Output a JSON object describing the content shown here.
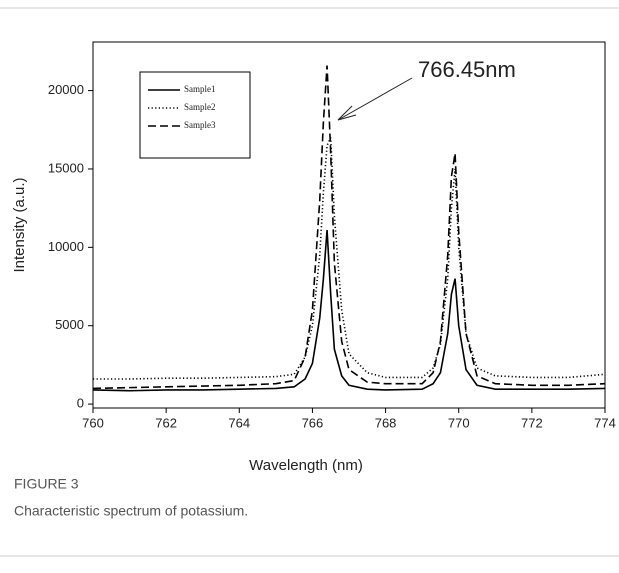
{
  "chart_data": {
    "type": "line",
    "x_label": "Wavelength (nm)",
    "y_label": "Intensity (a.u.)",
    "annotation": "766.45nm",
    "figure_label": "FIGURE 3",
    "caption": "Characteristic spectrum of potassium.",
    "x": [
      760,
      761,
      762,
      763,
      764,
      765,
      765.5,
      765.8,
      766.0,
      766.2,
      766.3,
      766.4,
      766.5,
      766.6,
      766.8,
      767.0,
      767.5,
      768,
      769,
      769.3,
      769.5,
      769.7,
      769.8,
      769.9,
      770.0,
      770.2,
      770.5,
      771,
      772,
      773,
      774
    ],
    "series": [
      {
        "name": "Sample1",
        "color": "#000000",
        "style": "solid",
        "values": [
          900,
          850,
          900,
          900,
          950,
          1000,
          1100,
          1600,
          2600,
          5500,
          8000,
          11100,
          7000,
          3500,
          1800,
          1200,
          950,
          900,
          950,
          1300,
          2000,
          4500,
          7000,
          8000,
          5000,
          2200,
          1200,
          950,
          950,
          950,
          1000
        ]
      },
      {
        "name": "Sample2",
        "color": "#000000",
        "style": "dotted",
        "values": [
          1600,
          1600,
          1650,
          1650,
          1700,
          1750,
          1900,
          3000,
          5000,
          9500,
          13500,
          16500,
          17000,
          12000,
          6000,
          3200,
          2000,
          1700,
          1700,
          2300,
          3800,
          8000,
          12500,
          15000,
          10000,
          4500,
          2300,
          1800,
          1700,
          1700,
          1900
        ]
      },
      {
        "name": "Sample3",
        "color": "#000000",
        "style": "dashed",
        "values": [
          1000,
          1050,
          1100,
          1150,
          1200,
          1300,
          1500,
          3000,
          6000,
          13000,
          18000,
          21600,
          16000,
          9000,
          4000,
          2200,
          1400,
          1300,
          1300,
          2000,
          4000,
          9500,
          14500,
          16000,
          11000,
          4500,
          1800,
          1300,
          1200,
          1200,
          1300
        ]
      }
    ],
    "xlim": [
      760,
      774
    ],
    "xticks": [
      760,
      762,
      764,
      766,
      768,
      770,
      772,
      774
    ],
    "ylim": [
      -250,
      23100
    ],
    "yticks": [
      0,
      5000,
      10000,
      15000,
      20000
    ],
    "grid": false
  }
}
